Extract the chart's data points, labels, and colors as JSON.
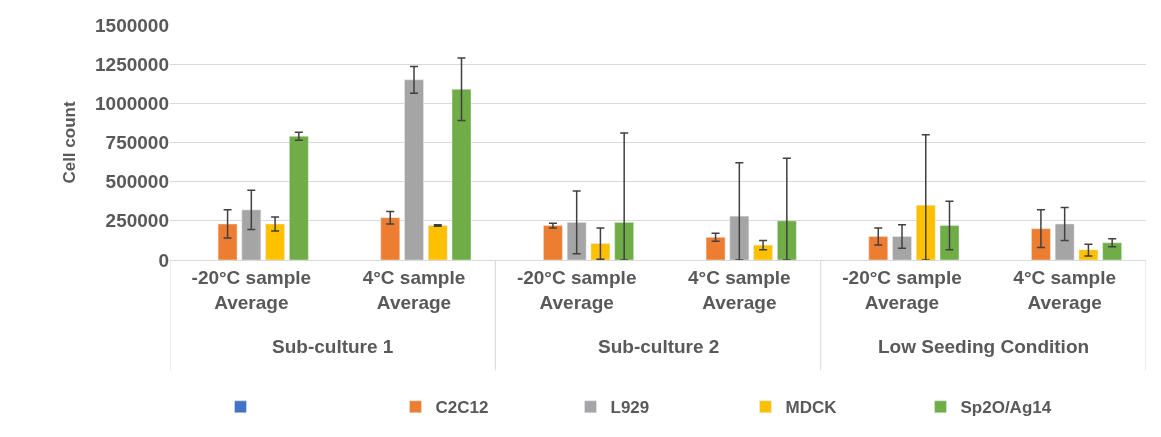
{
  "chart_data": {
    "type": "bar",
    "ylabel": "Cell count",
    "categories": [
      "-20°C sample Average",
      "4°C sample Average",
      "-20°C sample Average",
      "4°C sample Average",
      "-20°C sample Average",
      "4°C sample Average"
    ],
    "annotations": [
      "Sub-culture 1",
      "Sub-culture 2",
      "Low Seeding Condition"
    ],
    "series": [
      {
        "color": "#4472c4",
        "values": [
          null,
          null,
          null,
          null,
          null,
          null
        ]
      },
      {
        "name": "C2C12",
        "color": "#ed7d31",
        "values": [
          230000,
          270000,
          220000,
          145000,
          150000,
          200000
        ],
        "errors": [
          90000,
          40000,
          15000,
          25000,
          55000,
          120000
        ]
      },
      {
        "name": "L929",
        "color": "#a5a5a5",
        "values": [
          320000,
          1150000,
          240000,
          280000,
          150000,
          230000
        ],
        "errors": [
          125000,
          85000,
          200000,
          [
            0,
            620000
          ],
          75000,
          105000
        ]
      },
      {
        "name": "MDCK",
        "color": "#ffc000",
        "values": [
          230000,
          220000,
          105000,
          95000,
          350000,
          65000
        ],
        "errors": [
          45000,
          5000,
          100000,
          30000,
          [
            0,
            800000
          ],
          [
            25000,
            100000
          ]
        ]
      },
      {
        "name": "Sp2O/Ag14",
        "color": "#70ad47",
        "values": [
          790000,
          1090000,
          240000,
          250000,
          220000,
          110000
        ],
        "errors": [
          25000,
          200000,
          [
            0,
            810000
          ],
          [
            0,
            650000
          ],
          155000,
          25000
        ]
      }
    ],
    "ylim": [
      0,
      1500000
    ],
    "yticks": [
      0,
      250000,
      500000,
      750000,
      1000000,
      1250000,
      1500000
    ],
    "grid": "y",
    "legend": "bottom"
  }
}
